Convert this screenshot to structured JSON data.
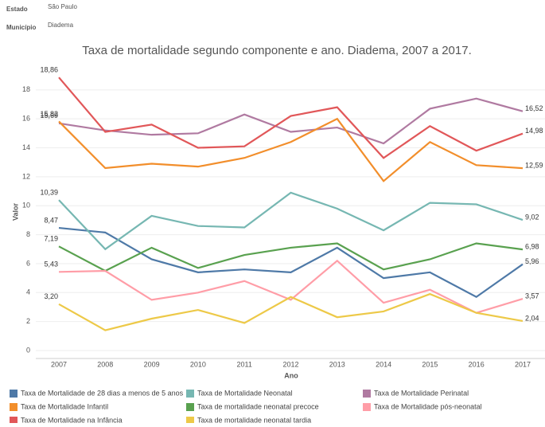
{
  "filters": [
    {
      "label": "Estado",
      "value": "São Paulo"
    },
    {
      "label": "Município",
      "value": "Diadema"
    }
  ],
  "chart_data": {
    "type": "line",
    "title": "Taxa de mortalidade segundo componente e ano. Diadema, 2007 a 2017.",
    "x_label": "Ano",
    "y_label": "Valor",
    "categories": [
      "2007",
      "2008",
      "2009",
      "2010",
      "2011",
      "2012",
      "2013",
      "2014",
      "2015",
      "2016",
      "2017"
    ],
    "ylim": [
      0,
      19.2
    ],
    "yticks": [
      0,
      2,
      4,
      6,
      8,
      10,
      12,
      14,
      16,
      18
    ],
    "grid": true,
    "series": [
      {
        "name": "Taxa de Mortalidade de 28 dias a menos de 5 anos",
        "color": "#4e79a7",
        "values": [
          8.47,
          8.15,
          6.3,
          5.4,
          5.6,
          5.4,
          7.1,
          5.0,
          5.4,
          3.7,
          5.96
        ],
        "value_labels": [
          "8,47",
          null,
          null,
          null,
          null,
          null,
          null,
          null,
          null,
          null,
          "5,96"
        ]
      },
      {
        "name": "Taxa de Mortalidade Neonatal",
        "color": "#76b7b2",
        "values": [
          10.39,
          7.0,
          9.3,
          8.6,
          8.5,
          10.9,
          9.8,
          8.3,
          10.2,
          10.1,
          9.02
        ],
        "value_labels": [
          "10,39",
          null,
          null,
          null,
          null,
          null,
          null,
          null,
          null,
          null,
          "9,02"
        ]
      },
      {
        "name": "Taxa de Mortalidade Perinatal",
        "color": "#b07aa1",
        "values": [
          15.69,
          15.2,
          14.9,
          15.0,
          16.3,
          15.1,
          15.4,
          14.3,
          16.7,
          17.4,
          16.52
        ],
        "value_labels": [
          "15,69",
          null,
          null,
          null,
          null,
          null,
          null,
          null,
          null,
          null,
          "16,52"
        ]
      },
      {
        "name": "Taxa de Mortalidade Infantil",
        "color": "#f28e2b",
        "values": [
          15.82,
          12.6,
          12.9,
          12.7,
          13.3,
          14.4,
          16.0,
          11.7,
          14.4,
          12.8,
          12.59
        ],
        "value_labels": [
          "15,82",
          null,
          null,
          null,
          null,
          null,
          null,
          null,
          null,
          null,
          "12,59"
        ]
      },
      {
        "name": "Taxa de mortalidade neonatal precoce",
        "color": "#59a14f",
        "values": [
          7.19,
          5.5,
          7.1,
          5.7,
          6.6,
          7.1,
          7.4,
          5.6,
          6.3,
          7.4,
          6.98
        ],
        "value_labels": [
          "7,19",
          null,
          null,
          null,
          null,
          null,
          null,
          null,
          null,
          null,
          "6,98"
        ]
      },
      {
        "name": "Taxa de Mortalidade pós-neonatal",
        "color": "#ff9da7",
        "values": [
          5.43,
          5.5,
          3.5,
          4.0,
          4.8,
          3.5,
          6.2,
          3.3,
          4.2,
          2.6,
          3.57
        ],
        "value_labels": [
          "5,43",
          null,
          null,
          null,
          null,
          null,
          null,
          null,
          null,
          null,
          "3,57"
        ]
      },
      {
        "name": "Taxa de Mortalidade na Infância",
        "color": "#e15759",
        "values": [
          18.86,
          15.1,
          15.6,
          14.0,
          14.1,
          16.2,
          16.8,
          13.3,
          15.5,
          13.8,
          14.98
        ],
        "value_labels": [
          "18,86",
          null,
          null,
          null,
          null,
          null,
          null,
          null,
          null,
          null,
          "14,98"
        ]
      },
      {
        "name": "Taxa de mortalidade neonatal tardia",
        "color": "#edc948",
        "values": [
          3.2,
          1.4,
          2.2,
          2.8,
          1.9,
          3.7,
          2.3,
          2.7,
          3.9,
          2.6,
          2.04
        ],
        "value_labels": [
          "3,20",
          null,
          null,
          null,
          null,
          null,
          null,
          null,
          null,
          null,
          "2,04"
        ]
      }
    ]
  }
}
